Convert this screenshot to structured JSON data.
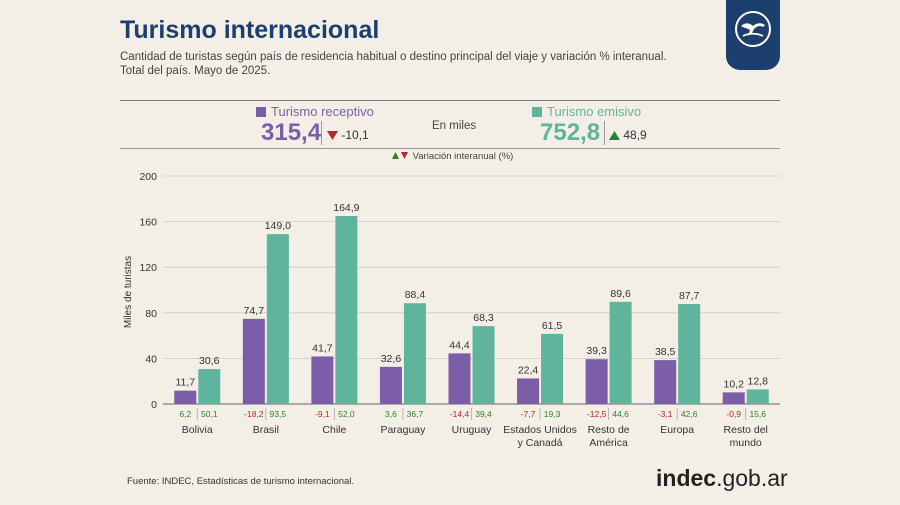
{
  "header": {
    "title": "Turismo internacional",
    "subtitle_line1": "Cantidad de turistas según país de residencia habitual o destino principal del viaje y variación % interanual.",
    "subtitle_line2": "Total del país. Mayo de 2025."
  },
  "summary": {
    "receptivo": {
      "label": "Turismo receptivo",
      "value": "315,4",
      "variation": "-10,1"
    },
    "emisivo": {
      "label": "Turismo emisivo",
      "value": "752,8",
      "variation": "48,9"
    },
    "unit_label": "En miles",
    "variation_note": "Variación interanual (%)"
  },
  "colors": {
    "receptivo": "#7b5ea7",
    "emisivo": "#5fb49c",
    "negative": "#b3282d",
    "positive": "#2e7d32",
    "title": "#1c3f6e"
  },
  "chart_data": {
    "type": "bar",
    "ylabel": "Miles de turistas",
    "ylim": [
      0,
      200
    ],
    "yticks": [
      "0",
      "40",
      "80",
      "120",
      "160",
      "200"
    ],
    "grid": true,
    "categories": [
      [
        "Bolivia"
      ],
      [
        "Brasil"
      ],
      [
        "Chile"
      ],
      [
        "Paraguay"
      ],
      [
        "Uruguay"
      ],
      [
        "Estados Unidos",
        "y Canadá"
      ],
      [
        "Resto de",
        "América"
      ],
      [
        "Europa"
      ],
      [
        "Resto del",
        "mundo"
      ]
    ],
    "series": [
      {
        "name": "Turismo receptivo",
        "values": [
          11.7,
          74.7,
          41.7,
          32.6,
          44.4,
          22.4,
          39.3,
          38.5,
          10.2
        ],
        "labels": [
          "11,7",
          "74,7",
          "41,7",
          "32,6",
          "44,4",
          "22,4",
          "39,3",
          "38,5",
          "10,2"
        ],
        "variation": [
          "6,2",
          "-18,2",
          "-9,1",
          "3,6",
          "-14,4",
          "-7,7",
          "-12,5",
          "-3,1",
          "-0,9"
        ]
      },
      {
        "name": "Turismo emisivo",
        "values": [
          30.6,
          149.0,
          164.9,
          88.4,
          68.3,
          61.5,
          89.6,
          87.7,
          12.8
        ],
        "labels": [
          "30,6",
          "149,0",
          "164,9",
          "88,4",
          "68,3",
          "61,5",
          "89,6",
          "87,7",
          "12,8"
        ],
        "variation": [
          "50,1",
          "93,5",
          "52,0",
          "36,7",
          "39,4",
          "19,3",
          "44,6",
          "42,6",
          "15,6"
        ]
      }
    ]
  },
  "footer": {
    "source": "Fuente: INDEC, Estadísticas de turismo internacional.",
    "brand_bold": "indec",
    "brand_rest": ".gob.ar"
  }
}
